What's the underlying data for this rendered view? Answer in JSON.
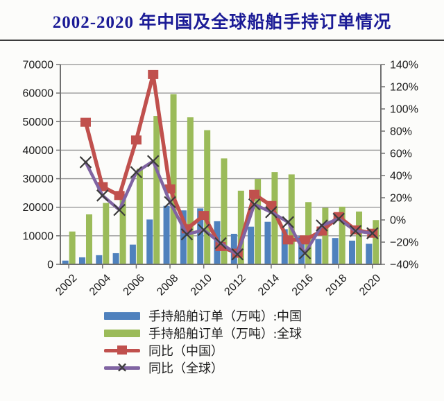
{
  "page": {
    "title": "2002-2020 年中国及全球船舶手持订单情况",
    "colors": {
      "title": "#1b1b96",
      "divider": "#3c3c3c",
      "background": "#fcfcfa",
      "grid": "#8f8f8f",
      "axis": "#707070",
      "tick_text": "#1a1a1a"
    }
  },
  "chart_data": {
    "type": "bar",
    "subtype": "combo-bar-line",
    "title": "2002-2020 年中国及全球船舶手持订单情况",
    "categories": [
      2002,
      2003,
      2004,
      2005,
      2006,
      2007,
      2008,
      2009,
      2010,
      2011,
      2012,
      2013,
      2014,
      2015,
      2016,
      2017,
      2018,
      2019,
      2020
    ],
    "series": [
      {
        "name": "手持船舶订单（万吨）:中国",
        "type": "bar",
        "axis": "left",
        "color": "#4f81bd",
        "values": [
          1300,
          2450,
          3200,
          3900,
          6900,
          15700,
          20500,
          18900,
          19600,
          15100,
          10700,
          13200,
          14900,
          12300,
          10000,
          8900,
          9200,
          8300,
          7200
        ]
      },
      {
        "name": "手持船舶订单（万吨）:全球",
        "type": "bar",
        "axis": "left",
        "color": "#9bbb59",
        "values": [
          11500,
          17500,
          21500,
          23400,
          33500,
          52000,
          59600,
          51500,
          47000,
          37100,
          25800,
          29900,
          32300,
          31500,
          21800,
          19800,
          20200,
          18500,
          15500
        ]
      },
      {
        "name": "同比（中国）",
        "type": "line",
        "marker": "square",
        "axis": "right",
        "color": "#c0504d",
        "values_pct": [
          null,
          88,
          30,
          22,
          72,
          131,
          28,
          -8,
          4,
          -24,
          -30,
          23,
          13,
          -18,
          -18,
          -10,
          3,
          -9,
          -12
        ]
      },
      {
        "name": "同比（全球）",
        "type": "line",
        "marker": "x",
        "axis": "right",
        "color": "#8064a2",
        "marker_color": "#3c3c3c",
        "values_pct": [
          null,
          52,
          22,
          9,
          43,
          53,
          16,
          -13,
          -9,
          -21,
          -31,
          14,
          7,
          -2,
          -30,
          -5,
          1,
          -10,
          -12
        ]
      }
    ],
    "left_axis": {
      "min": 0,
      "max": 70000,
      "step": 10000,
      "tick_labels": [
        "0",
        "10000",
        "20000",
        "30000",
        "40000",
        "50000",
        "60000",
        "70000"
      ]
    },
    "right_axis": {
      "min": -40,
      "max": 140,
      "step": 20,
      "tick_labels": [
        "−40%",
        "−20%",
        "0%",
        "20%",
        "40%",
        "60%",
        "80%",
        "100%",
        "120%",
        "140%"
      ]
    },
    "x_axis": {
      "tick_labels": [
        "2002",
        "2004",
        "2006",
        "2008",
        "2010",
        "2012",
        "2014",
        "2016",
        "2018",
        "2020"
      ],
      "label_rotation_deg": -45
    },
    "grid": true,
    "legend_position": "bottom-left"
  }
}
